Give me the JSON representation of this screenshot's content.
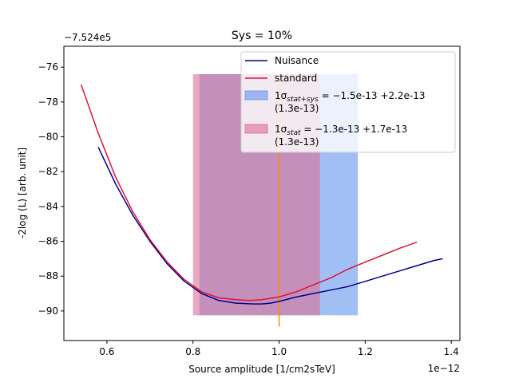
{
  "chart_data": {
    "type": "line",
    "title": "Sys = 10%",
    "xlabel": "Source amplitude [1/cm2sTeV]",
    "ylabel": "-2log (L) [arb. unit]",
    "x_offset_label": "1e−12",
    "y_offset_label": "−7.524e5",
    "xlim": [
      0.5,
      1.42
    ],
    "ylim": [
      -91.7,
      -74.8
    ],
    "x_ticks": [
      0.6,
      0.8,
      1.0,
      1.2,
      1.4
    ],
    "x_tick_labels": [
      "0.6",
      "0.8",
      "1.0",
      "1.2",
      "1.4"
    ],
    "y_ticks": [
      -90,
      -88,
      -86,
      -84,
      -82,
      -80,
      -78,
      -76
    ],
    "y_tick_labels": [
      "−90",
      "−88",
      "−86",
      "−84",
      "−82",
      "−80",
      "−78",
      "−76"
    ],
    "grid": false,
    "legend_position": "top-right",
    "series": [
      {
        "name": "Nuisance",
        "color": "#00008b",
        "x": [
          0.58,
          0.62,
          0.66,
          0.7,
          0.74,
          0.78,
          0.82,
          0.86,
          0.9,
          0.94,
          0.96,
          0.98,
          1.0,
          1.04,
          1.08,
          1.12,
          1.16,
          1.2,
          1.24,
          1.28,
          1.32,
          1.36,
          1.38
        ],
        "y": [
          -80.6,
          -82.7,
          -84.5,
          -86.0,
          -87.3,
          -88.3,
          -89.0,
          -89.4,
          -89.55,
          -89.6,
          -89.6,
          -89.55,
          -89.45,
          -89.2,
          -89.0,
          -88.8,
          -88.6,
          -88.3,
          -88.0,
          -87.7,
          -87.4,
          -87.1,
          -87.0
        ]
      },
      {
        "name": "standard",
        "color": "#dc143c",
        "x": [
          0.54,
          0.58,
          0.62,
          0.66,
          0.7,
          0.74,
          0.78,
          0.82,
          0.86,
          0.9,
          0.93,
          0.96,
          1.0,
          1.04,
          1.08,
          1.12,
          1.16,
          1.2,
          1.24,
          1.28,
          1.32
        ],
        "y": [
          -77.0,
          -79.8,
          -82.3,
          -84.3,
          -85.9,
          -87.2,
          -88.2,
          -88.9,
          -89.25,
          -89.35,
          -89.4,
          -89.35,
          -89.2,
          -88.9,
          -88.5,
          -88.1,
          -87.6,
          -87.2,
          -86.8,
          -86.4,
          -86.05
        ]
      }
    ],
    "bands": [
      {
        "label_main": "1σ",
        "label_sub": "stat+sys",
        "label_values": " = −1.5e-13 +2.2e-13",
        "label_extra": "(1.3e-13)",
        "color": "#6495ed",
        "opacity": 0.6,
        "x_from": 0.815,
        "x_to": 1.183,
        "y_from": -90.25,
        "y_to": -76.4
      },
      {
        "label_main": "1σ",
        "label_sub": "stat",
        "label_values": " = −1.3e-13 +1.7e-13",
        "label_extra": "(1.3e-13)",
        "color": "#db7093",
        "opacity": 0.6,
        "x_from": 0.8,
        "x_to": 1.095,
        "y_from": -90.25,
        "y_to": -76.4
      }
    ],
    "vertical_line": {
      "x": 1.0,
      "y_from": -90.9,
      "y_to": -76.4,
      "color": "#ff8c00"
    }
  }
}
